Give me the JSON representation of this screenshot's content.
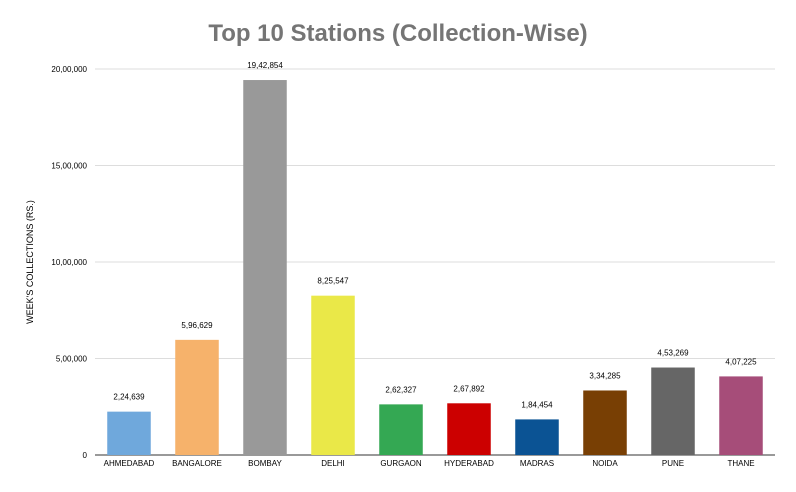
{
  "chart_data": {
    "type": "bar",
    "title": "Top 10 Stations (Collection-Wise)",
    "xlabel": "",
    "ylabel": "WEEK'S COLLECTIONS (RS.)",
    "ylim": [
      0,
      2000000
    ],
    "yticks": [
      {
        "value": 0,
        "label": "0"
      },
      {
        "value": 500000,
        "label": "5,00,000"
      },
      {
        "value": 1000000,
        "label": "10,00,000"
      },
      {
        "value": 1500000,
        "label": "15,00,000"
      },
      {
        "value": 2000000,
        "label": "20,00,000"
      }
    ],
    "grid": true,
    "categories": [
      "AHMEDABAD",
      "BANGALORE",
      "BOMBAY",
      "DELHI",
      "GURGAON",
      "HYDERABAD",
      "MADRAS",
      "NOIDA",
      "PUNE",
      "THANE"
    ],
    "values": [
      224639,
      596629,
      1942854,
      825547,
      262327,
      267892,
      184454,
      334285,
      453269,
      407225
    ],
    "value_labels": [
      "2,24,639",
      "5,96,629",
      "19,42,854",
      "8,25,547",
      "2,62,327",
      "2,67,892",
      "1,84,454",
      "3,34,285",
      "4,53,269",
      "4,07,225"
    ],
    "colors": [
      "#6fa8dc",
      "#f6b26b",
      "#999999",
      "#eae848",
      "#34a853",
      "#cc0000",
      "#0b5394",
      "#783f04",
      "#666666",
      "#a64d79"
    ]
  }
}
